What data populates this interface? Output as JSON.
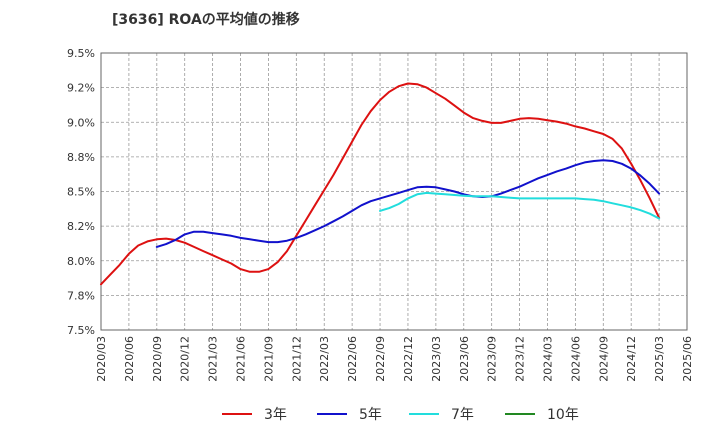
{
  "chart_data": {
    "type": "line",
    "title": "[3636]  ROAの平均値の推移",
    "xlabel": "",
    "ylabel": "",
    "ylim": [
      7.5,
      9.5
    ],
    "y_ticks": [
      "7.5%",
      "7.8%",
      "8.0%",
      "8.2%",
      "8.5%",
      "8.8%",
      "9.0%",
      "9.2%",
      "9.5%"
    ],
    "y_tick_values": [
      7.5,
      7.75,
      8.0,
      8.25,
      8.5,
      8.75,
      9.0,
      9.25,
      9.5
    ],
    "x_ticks": [
      "2020/03",
      "2020/06",
      "2020/09",
      "2020/12",
      "2021/03",
      "2021/06",
      "2021/09",
      "2021/12",
      "2022/03",
      "2022/06",
      "2022/09",
      "2022/12",
      "2023/03",
      "2023/06",
      "2023/09",
      "2023/12",
      "2024/03",
      "2024/06",
      "2024/09",
      "2024/12",
      "2025/03",
      "2025/06"
    ],
    "grid": true,
    "legend_position": "bottom",
    "series": [
      {
        "name": "3年",
        "color": "#dd1111",
        "x": [
          "2020/03",
          "2020/04",
          "2020/05",
          "2020/06",
          "2020/07",
          "2020/08",
          "2020/09",
          "2020/10",
          "2020/11",
          "2020/12",
          "2021/01",
          "2021/02",
          "2021/03",
          "2021/04",
          "2021/05",
          "2021/06",
          "2021/07",
          "2021/08",
          "2021/09",
          "2021/10",
          "2021/11",
          "2021/12",
          "2022/01",
          "2022/02",
          "2022/03",
          "2022/04",
          "2022/05",
          "2022/06",
          "2022/07",
          "2022/08",
          "2022/09",
          "2022/10",
          "2022/11",
          "2022/12",
          "2023/01",
          "2023/02",
          "2023/03",
          "2023/04",
          "2023/05",
          "2023/06",
          "2023/07",
          "2023/08",
          "2023/09",
          "2023/10",
          "2023/11",
          "2023/12",
          "2024/01",
          "2024/02",
          "2024/03",
          "2024/04",
          "2024/05",
          "2024/06",
          "2024/07",
          "2024/08",
          "2024/09",
          "2024/10",
          "2024/11",
          "2024/12",
          "2025/01",
          "2025/02",
          "2025/03"
        ],
        "values": [
          7.83,
          7.9,
          7.97,
          8.05,
          8.11,
          8.14,
          8.155,
          8.16,
          8.15,
          8.13,
          8.1,
          8.07,
          8.04,
          8.01,
          7.98,
          7.94,
          7.92,
          7.92,
          7.94,
          7.99,
          8.07,
          8.18,
          8.29,
          8.4,
          8.51,
          8.62,
          8.74,
          8.86,
          8.98,
          9.08,
          9.16,
          9.22,
          9.26,
          9.28,
          9.275,
          9.25,
          9.21,
          9.17,
          9.12,
          9.07,
          9.03,
          9.01,
          8.995,
          8.995,
          9.01,
          9.025,
          9.03,
          9.025,
          9.015,
          9.005,
          8.99,
          8.97,
          8.955,
          8.935,
          8.915,
          8.88,
          8.81,
          8.7,
          8.58,
          8.45,
          8.31
        ]
      },
      {
        "name": "5年",
        "color": "#1111cc",
        "x": [
          "2020/09",
          "2020/10",
          "2020/11",
          "2020/12",
          "2021/01",
          "2021/02",
          "2021/03",
          "2021/04",
          "2021/05",
          "2021/06",
          "2021/07",
          "2021/08",
          "2021/09",
          "2021/10",
          "2021/11",
          "2021/12",
          "2022/01",
          "2022/02",
          "2022/03",
          "2022/04",
          "2022/05",
          "2022/06",
          "2022/07",
          "2022/08",
          "2022/09",
          "2022/10",
          "2022/11",
          "2022/12",
          "2023/01",
          "2023/02",
          "2023/03",
          "2023/04",
          "2023/05",
          "2023/06",
          "2023/07",
          "2023/08",
          "2023/09",
          "2023/10",
          "2023/11",
          "2023/12",
          "2024/01",
          "2024/02",
          "2024/03",
          "2024/04",
          "2024/05",
          "2024/06",
          "2024/07",
          "2024/08",
          "2024/09",
          "2024/10",
          "2024/11",
          "2024/12",
          "2025/01",
          "2025/02",
          "2025/03"
        ],
        "values": [
          8.1,
          8.12,
          8.15,
          8.19,
          8.21,
          8.21,
          8.2,
          8.19,
          8.18,
          8.165,
          8.155,
          8.145,
          8.135,
          8.135,
          8.145,
          8.165,
          8.19,
          8.22,
          8.25,
          8.285,
          8.32,
          8.36,
          8.4,
          8.43,
          8.45,
          8.47,
          8.49,
          8.51,
          8.53,
          8.535,
          8.53,
          8.515,
          8.5,
          8.48,
          8.465,
          8.46,
          8.465,
          8.485,
          8.51,
          8.535,
          8.565,
          8.595,
          8.62,
          8.645,
          8.665,
          8.69,
          8.71,
          8.72,
          8.725,
          8.72,
          8.7,
          8.665,
          8.615,
          8.555,
          8.485
        ]
      },
      {
        "name": "7年",
        "color": "#22dddd",
        "x": [
          "2022/09",
          "2022/10",
          "2022/11",
          "2022/12",
          "2023/01",
          "2023/02",
          "2023/03",
          "2023/04",
          "2023/05",
          "2023/06",
          "2023/07",
          "2023/08",
          "2023/09",
          "2023/10",
          "2023/11",
          "2023/12",
          "2024/01",
          "2024/02",
          "2024/03",
          "2024/04",
          "2024/05",
          "2024/06",
          "2024/07",
          "2024/08",
          "2024/09",
          "2024/10",
          "2024/11",
          "2024/12",
          "2025/01",
          "2025/02",
          "2025/03"
        ],
        "values": [
          8.36,
          8.38,
          8.41,
          8.45,
          8.48,
          8.49,
          8.485,
          8.48,
          8.475,
          8.47,
          8.465,
          8.465,
          8.465,
          8.46,
          8.455,
          8.45,
          8.45,
          8.45,
          8.45,
          8.45,
          8.45,
          8.45,
          8.445,
          8.44,
          8.43,
          8.415,
          8.4,
          8.385,
          8.365,
          8.34,
          8.305
        ]
      },
      {
        "name": "10年",
        "color": "#228822",
        "x": [],
        "values": []
      }
    ]
  }
}
